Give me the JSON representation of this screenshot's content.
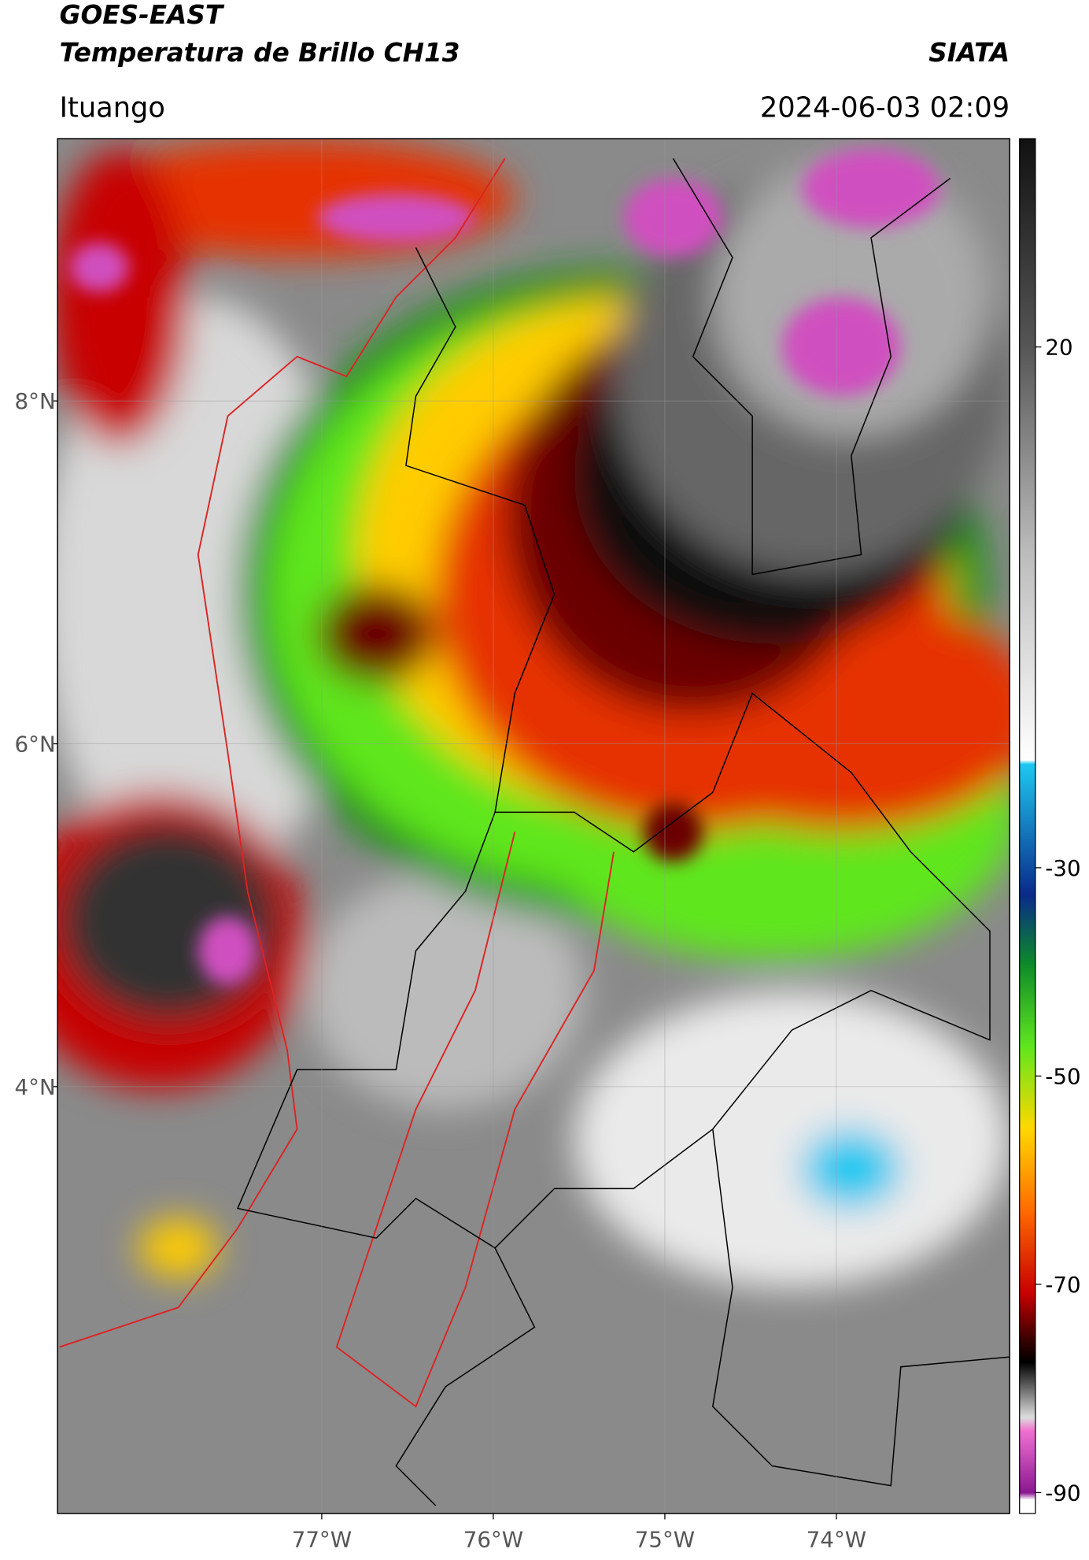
{
  "header": {
    "title": "GOES-EAST",
    "subtitle": "Temperatura de Brillo CH13",
    "source": "SIATA",
    "location": "Ituango",
    "datetime": "2024-06-03 02:09"
  },
  "map": {
    "xlim": [
      -78.54,
      -72.99
    ],
    "ylim": [
      1.51,
      9.53
    ],
    "xticks": [
      {
        "value": -77,
        "label": "77°W"
      },
      {
        "value": -76,
        "label": "76°W"
      },
      {
        "value": -75,
        "label": "75°W"
      },
      {
        "value": -74,
        "label": "74°W"
      }
    ],
    "yticks": [
      {
        "value": 8,
        "label": "8°N"
      },
      {
        "value": 6,
        "label": "6°N"
      },
      {
        "value": 4,
        "label": "4°N"
      }
    ],
    "grid": true
  },
  "colorbar": {
    "lim": [
      -92,
      40
    ],
    "ticks": [
      20,
      -30,
      -50,
      -70,
      -90
    ]
  }
}
